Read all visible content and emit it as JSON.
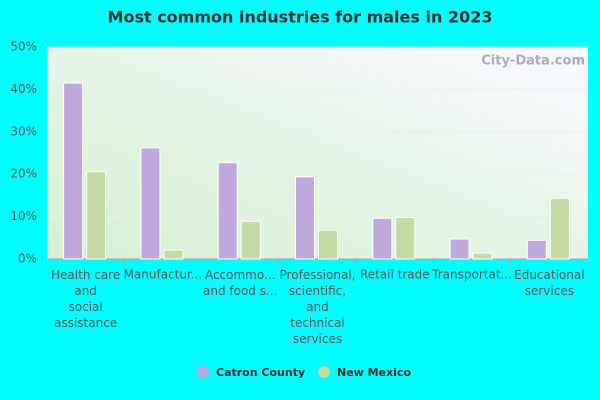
{
  "chart_data": {
    "type": "bar",
    "title": "Most common industries for males in 2023",
    "watermark": "City-Data.com",
    "categories": [
      "Health care\nand\nsocial\nassistance",
      "Manufactur...",
      "Accommo...\nand food s...",
      "Professional,\nscientific,\nand\ntechnical\nservices",
      "Retail trade",
      "Transportat...",
      "Educational\nservices"
    ],
    "series": [
      {
        "name": "Catron County",
        "color": "#c0a8dc",
        "values": [
          41.5,
          26.2,
          22.7,
          19.4,
          9.6,
          4.7,
          4.4
        ]
      },
      {
        "name": "New Mexico",
        "color": "#c5d9a3",
        "values": [
          20.6,
          2.1,
          8.9,
          6.8,
          9.8,
          1.4,
          14.3
        ]
      }
    ],
    "ylim": [
      0,
      50
    ],
    "yticks": [
      {
        "value": 0,
        "label": "0%"
      },
      {
        "value": 10,
        "label": "10%"
      },
      {
        "value": 20,
        "label": "20%"
      },
      {
        "value": 30,
        "label": "30%"
      },
      {
        "value": 40,
        "label": "40%"
      },
      {
        "value": 50,
        "label": "50%"
      }
    ],
    "grid": true
  }
}
